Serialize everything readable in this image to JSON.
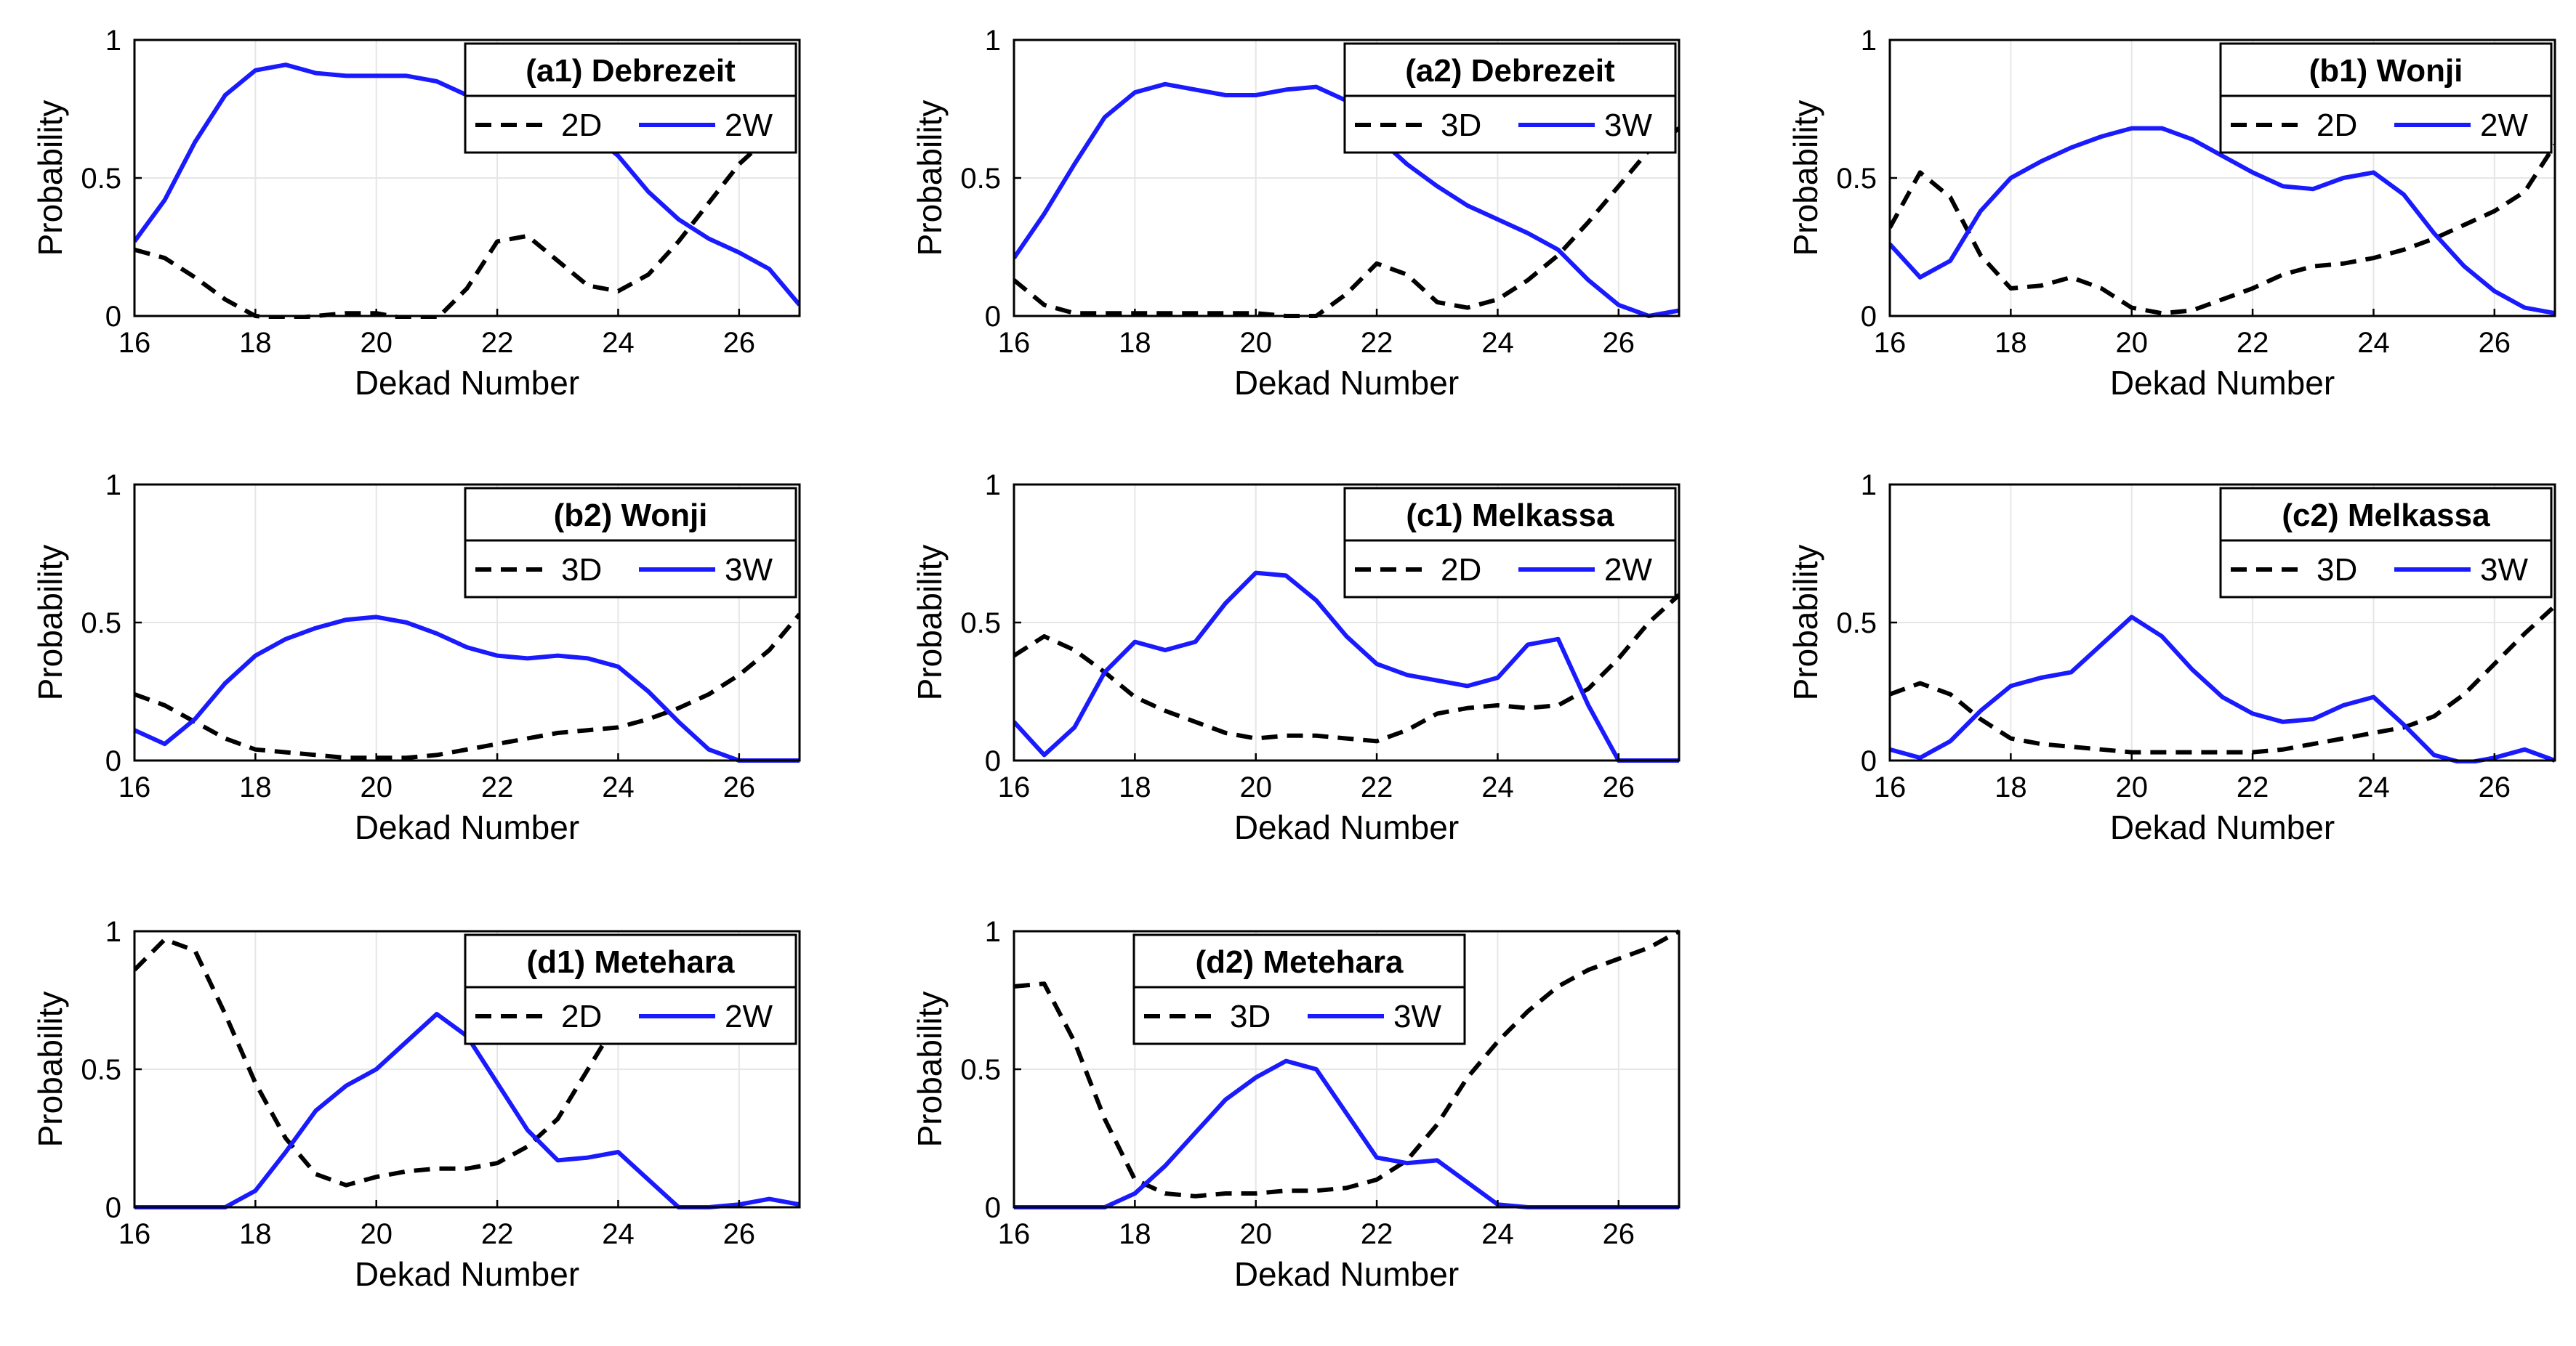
{
  "figure": {
    "description": "Eight line plots of dry (D, dashed black) and wet (W, solid blue) spell probabilities versus dekad number",
    "colors": {
      "dry": "#000000",
      "wet": "#1a1aff",
      "grid": "#e6e6e6",
      "axis": "#000000"
    }
  },
  "chart_data": [
    {
      "type": "line",
      "title": "(a1) Debrezeit",
      "xlabel": "Dekad Number",
      "ylabel": "Probability",
      "xlim": [
        16,
        27
      ],
      "ylim": [
        0,
        1
      ],
      "xticks": [
        "16",
        "18",
        "20",
        "22",
        "24",
        "26"
      ],
      "yticks": [
        "0",
        "0.5",
        "1"
      ],
      "grid": true,
      "legend_position": "top-right",
      "series": [
        {
          "name": "2D",
          "style": "dashed",
          "color": "#000000",
          "x": [
            16,
            16.5,
            17,
            17.5,
            18,
            18.5,
            19,
            19.5,
            20,
            20.5,
            21,
            21.5,
            22,
            22.5,
            23,
            23.5,
            24,
            24.5,
            25,
            25.5,
            26,
            26.5,
            27
          ],
          "y": [
            0.24,
            0.21,
            0.14,
            0.06,
            0.0,
            -0.01,
            0.0,
            0.01,
            0.01,
            -0.01,
            -0.01,
            0.1,
            0.27,
            0.29,
            0.2,
            0.11,
            0.09,
            0.15,
            0.27,
            0.41,
            0.55,
            0.65,
            0.68
          ]
        },
        {
          "name": "2W",
          "style": "solid",
          "color": "#1a1aff",
          "x": [
            16,
            16.5,
            17,
            17.5,
            18,
            18.5,
            19,
            19.5,
            20,
            20.5,
            21,
            21.5,
            22,
            22.5,
            23,
            23.5,
            24,
            24.5,
            25,
            25.5,
            26,
            26.5,
            27
          ],
          "y": [
            0.27,
            0.42,
            0.63,
            0.8,
            0.89,
            0.91,
            0.88,
            0.87,
            0.87,
            0.87,
            0.85,
            0.8,
            0.78,
            0.75,
            0.73,
            0.67,
            0.58,
            0.45,
            0.35,
            0.28,
            0.23,
            0.17,
            0.04
          ]
        }
      ]
    },
    {
      "type": "line",
      "title": "(a2) Debrezeit",
      "xlabel": "Dekad Number",
      "ylabel": "Probability",
      "xlim": [
        16,
        27
      ],
      "ylim": [
        0,
        1
      ],
      "xticks": [
        "16",
        "18",
        "20",
        "22",
        "24",
        "26"
      ],
      "yticks": [
        "0",
        "0.5",
        "1"
      ],
      "grid": true,
      "legend_position": "top-right",
      "series": [
        {
          "name": "3D",
          "style": "dashed",
          "color": "#000000",
          "x": [
            16,
            16.5,
            17,
            17.5,
            18,
            18.5,
            19,
            19.5,
            20,
            20.5,
            21,
            21.5,
            22,
            22.5,
            23,
            23.5,
            24,
            24.5,
            25,
            25.5,
            26,
            26.5,
            27
          ],
          "y": [
            0.13,
            0.04,
            0.01,
            0.01,
            0.01,
            0.01,
            0.01,
            0.01,
            0.01,
            0.0,
            0.0,
            0.08,
            0.19,
            0.15,
            0.05,
            0.03,
            0.06,
            0.13,
            0.22,
            0.34,
            0.47,
            0.6,
            0.68
          ]
        },
        {
          "name": "3W",
          "style": "solid",
          "color": "#1a1aff",
          "x": [
            16,
            16.5,
            17,
            17.5,
            18,
            18.5,
            19,
            19.5,
            20,
            20.5,
            21,
            21.5,
            22,
            22.5,
            23,
            23.5,
            24,
            24.5,
            25,
            25.5,
            26,
            26.5,
            27
          ],
          "y": [
            0.21,
            0.37,
            0.55,
            0.72,
            0.81,
            0.84,
            0.82,
            0.8,
            0.8,
            0.82,
            0.83,
            0.78,
            0.65,
            0.55,
            0.47,
            0.4,
            0.35,
            0.3,
            0.24,
            0.13,
            0.04,
            0.0,
            0.02
          ]
        }
      ]
    },
    {
      "type": "line",
      "title": "(b1) Wonji",
      "xlabel": "Dekad Number",
      "ylabel": "Probability",
      "xlim": [
        16,
        27
      ],
      "ylim": [
        0,
        1
      ],
      "xticks": [
        "16",
        "18",
        "20",
        "22",
        "24",
        "26"
      ],
      "yticks": [
        "0",
        "0.5",
        "1"
      ],
      "grid": true,
      "legend_position": "top-right",
      "series": [
        {
          "name": "2D",
          "style": "dashed",
          "color": "#000000",
          "x": [
            16,
            16.5,
            17,
            17.5,
            18,
            18.5,
            19,
            19.5,
            20,
            20.5,
            21,
            21.5,
            22,
            22.5,
            23,
            23.5,
            24,
            24.5,
            25,
            25.5,
            26,
            26.5,
            27
          ],
          "y": [
            0.32,
            0.52,
            0.43,
            0.22,
            0.1,
            0.11,
            0.14,
            0.1,
            0.03,
            0.01,
            0.02,
            0.06,
            0.1,
            0.15,
            0.18,
            0.19,
            0.21,
            0.24,
            0.28,
            0.33,
            0.38,
            0.45,
            0.62
          ]
        },
        {
          "name": "2W",
          "style": "solid",
          "color": "#1a1aff",
          "x": [
            16,
            16.5,
            17,
            17.5,
            18,
            18.5,
            19,
            19.5,
            20,
            20.5,
            21,
            21.5,
            22,
            22.5,
            23,
            23.5,
            24,
            24.5,
            25,
            25.5,
            26,
            26.5,
            27
          ],
          "y": [
            0.26,
            0.14,
            0.2,
            0.38,
            0.5,
            0.56,
            0.61,
            0.65,
            0.68,
            0.68,
            0.64,
            0.58,
            0.52,
            0.47,
            0.46,
            0.5,
            0.52,
            0.44,
            0.3,
            0.18,
            0.09,
            0.03,
            0.01
          ]
        }
      ]
    },
    {
      "type": "line",
      "title": "(b2) Wonji",
      "xlabel": "Dekad Number",
      "ylabel": "Probability",
      "xlim": [
        16,
        27
      ],
      "ylim": [
        0,
        1
      ],
      "xticks": [
        "16",
        "18",
        "20",
        "22",
        "24",
        "26"
      ],
      "yticks": [
        "0",
        "0.5",
        "1"
      ],
      "grid": true,
      "legend_position": "top-right",
      "series": [
        {
          "name": "3D",
          "style": "dashed",
          "color": "#000000",
          "x": [
            16,
            16.5,
            17,
            17.5,
            18,
            18.5,
            19,
            19.5,
            20,
            20.5,
            21,
            21.5,
            22,
            22.5,
            23,
            23.5,
            24,
            24.5,
            25,
            25.5,
            26,
            26.5,
            27
          ],
          "y": [
            0.24,
            0.2,
            0.14,
            0.08,
            0.04,
            0.03,
            0.02,
            0.01,
            0.01,
            0.01,
            0.02,
            0.04,
            0.06,
            0.08,
            0.1,
            0.11,
            0.12,
            0.15,
            0.19,
            0.24,
            0.31,
            0.4,
            0.53
          ]
        },
        {
          "name": "3W",
          "style": "solid",
          "color": "#1a1aff",
          "x": [
            16,
            16.5,
            17,
            17.5,
            18,
            18.5,
            19,
            19.5,
            20,
            20.5,
            21,
            21.5,
            22,
            22.5,
            23,
            23.5,
            24,
            24.5,
            25,
            25.5,
            26,
            26.5,
            27
          ],
          "y": [
            0.11,
            0.06,
            0.15,
            0.28,
            0.38,
            0.44,
            0.48,
            0.51,
            0.52,
            0.5,
            0.46,
            0.41,
            0.38,
            0.37,
            0.38,
            0.37,
            0.34,
            0.25,
            0.14,
            0.04,
            0.0,
            0.0,
            0.0
          ]
        }
      ]
    },
    {
      "type": "line",
      "title": "(c1) Melkassa",
      "xlabel": "Dekad Number",
      "ylabel": "Probability",
      "xlim": [
        16,
        27
      ],
      "ylim": [
        0,
        1
      ],
      "xticks": [
        "16",
        "18",
        "20",
        "22",
        "24",
        "26"
      ],
      "yticks": [
        "0",
        "0.5",
        "1"
      ],
      "grid": true,
      "legend_position": "top-right",
      "series": [
        {
          "name": "2D",
          "style": "dashed",
          "color": "#000000",
          "x": [
            16,
            16.5,
            17,
            17.5,
            18,
            18.5,
            19,
            19.5,
            20,
            20.5,
            21,
            21.5,
            22,
            22.5,
            23,
            23.5,
            24,
            24.5,
            25,
            25.5,
            26,
            26.5,
            27
          ],
          "y": [
            0.38,
            0.45,
            0.4,
            0.32,
            0.23,
            0.18,
            0.14,
            0.1,
            0.08,
            0.09,
            0.09,
            0.08,
            0.07,
            0.11,
            0.17,
            0.19,
            0.2,
            0.19,
            0.2,
            0.26,
            0.37,
            0.5,
            0.6
          ]
        },
        {
          "name": "2W",
          "style": "solid",
          "color": "#1a1aff",
          "x": [
            16,
            16.5,
            17,
            17.5,
            18,
            18.5,
            19,
            19.5,
            20,
            20.5,
            21,
            21.5,
            22,
            22.5,
            23,
            23.5,
            24,
            24.5,
            25,
            25.5,
            26,
            26.5,
            27
          ],
          "y": [
            0.14,
            0.02,
            0.12,
            0.32,
            0.43,
            0.4,
            0.43,
            0.57,
            0.68,
            0.67,
            0.58,
            0.45,
            0.35,
            0.31,
            0.29,
            0.27,
            0.3,
            0.42,
            0.44,
            0.2,
            0.0,
            0.0,
            0.0
          ]
        }
      ]
    },
    {
      "type": "line",
      "title": "(c2) Melkassa",
      "xlabel": "Dekad Number",
      "ylabel": "Probability",
      "xlim": [
        16,
        27
      ],
      "ylim": [
        0,
        1
      ],
      "xticks": [
        "16",
        "18",
        "20",
        "22",
        "24",
        "26"
      ],
      "yticks": [
        "0",
        "0.5",
        "1"
      ],
      "grid": true,
      "legend_position": "top-right",
      "series": [
        {
          "name": "3D",
          "style": "dashed",
          "color": "#000000",
          "x": [
            16,
            16.5,
            17,
            17.5,
            18,
            18.5,
            19,
            19.5,
            20,
            20.5,
            21,
            21.5,
            22,
            22.5,
            23,
            23.5,
            24,
            24.5,
            25,
            25.5,
            26,
            26.5,
            27
          ],
          "y": [
            0.24,
            0.28,
            0.24,
            0.15,
            0.08,
            0.06,
            0.05,
            0.04,
            0.03,
            0.03,
            0.03,
            0.03,
            0.03,
            0.04,
            0.06,
            0.08,
            0.1,
            0.12,
            0.16,
            0.24,
            0.35,
            0.46,
            0.56
          ]
        },
        {
          "name": "3W",
          "style": "solid",
          "color": "#1a1aff",
          "x": [
            16,
            16.5,
            17,
            17.5,
            18,
            18.5,
            19,
            19.5,
            20,
            20.5,
            21,
            21.5,
            22,
            22.5,
            23,
            23.5,
            24,
            24.5,
            25,
            25.5,
            26,
            26.5,
            27
          ],
          "y": [
            0.04,
            0.01,
            0.07,
            0.18,
            0.27,
            0.3,
            0.32,
            0.42,
            0.52,
            0.45,
            0.33,
            0.23,
            0.17,
            0.14,
            0.15,
            0.2,
            0.23,
            0.13,
            0.02,
            -0.01,
            0.01,
            0.04,
            0.0
          ]
        }
      ]
    },
    {
      "type": "line",
      "title": "(d1) Metehara",
      "xlabel": "Dekad Number",
      "ylabel": "Probability",
      "xlim": [
        16,
        27
      ],
      "ylim": [
        0,
        1
      ],
      "xticks": [
        "16",
        "18",
        "20",
        "22",
        "24",
        "26"
      ],
      "yticks": [
        "0",
        "0.5",
        "1"
      ],
      "grid": true,
      "legend_position": "top-right",
      "series": [
        {
          "name": "2D",
          "style": "dashed",
          "color": "#000000",
          "x": [
            16,
            16.5,
            17,
            17.5,
            18,
            18.5,
            19,
            19.5,
            20,
            20.5,
            21,
            21.5,
            22,
            22.5,
            23,
            23.5,
            24
          ],
          "y": [
            0.86,
            0.97,
            0.93,
            0.7,
            0.45,
            0.25,
            0.12,
            0.08,
            0.11,
            0.13,
            0.14,
            0.14,
            0.16,
            0.22,
            0.32,
            0.5,
            0.68
          ]
        },
        {
          "name": "2W",
          "style": "solid",
          "color": "#1a1aff",
          "x": [
            16,
            16.5,
            17,
            17.5,
            18,
            18.5,
            19,
            19.5,
            20,
            20.5,
            21,
            21.5,
            22,
            22.5,
            23,
            23.5,
            24,
            24.5,
            25,
            25.5,
            26,
            26.5,
            27
          ],
          "y": [
            0.0,
            0.0,
            0.0,
            0.0,
            0.06,
            0.2,
            0.35,
            0.44,
            0.5,
            0.6,
            0.7,
            0.62,
            0.45,
            0.28,
            0.17,
            0.18,
            0.2,
            0.1,
            0.0,
            0.0,
            0.01,
            0.03,
            0.01
          ]
        }
      ]
    },
    {
      "type": "line",
      "title": "(d2) Metehara",
      "xlabel": "Dekad Number",
      "ylabel": "Probability",
      "xlim": [
        16,
        27
      ],
      "ylim": [
        0,
        1
      ],
      "xticks": [
        "16",
        "18",
        "20",
        "22",
        "24",
        "26"
      ],
      "yticks": [
        "0",
        "0.5",
        "1"
      ],
      "grid": true,
      "legend_position": "top-left",
      "series": [
        {
          "name": "3D",
          "style": "dashed",
          "color": "#000000",
          "x": [
            16,
            16.5,
            17,
            17.5,
            18,
            18.5,
            19,
            19.5,
            20,
            20.5,
            21,
            21.5,
            22,
            22.5,
            23,
            23.5,
            24,
            24.5,
            25,
            25.5,
            26,
            26.5,
            27
          ],
          "y": [
            0.8,
            0.81,
            0.6,
            0.32,
            0.1,
            0.05,
            0.04,
            0.05,
            0.05,
            0.06,
            0.06,
            0.07,
            0.1,
            0.17,
            0.3,
            0.47,
            0.6,
            0.71,
            0.8,
            0.86,
            0.9,
            0.94,
            1.0
          ]
        },
        {
          "name": "3W",
          "style": "solid",
          "color": "#1a1aff",
          "x": [
            16,
            16.5,
            17,
            17.5,
            18,
            18.5,
            19,
            19.5,
            20,
            20.5,
            21,
            21.5,
            22,
            22.5,
            23,
            23.5,
            24,
            24.5,
            25,
            25.5,
            26,
            26.5,
            27
          ],
          "y": [
            0.0,
            0.0,
            0.0,
            0.0,
            0.05,
            0.15,
            0.27,
            0.39,
            0.47,
            0.53,
            0.5,
            0.34,
            0.18,
            0.16,
            0.17,
            0.09,
            0.01,
            0.0,
            0.0,
            0.0,
            0.0,
            0.0,
            0.0
          ]
        }
      ]
    }
  ]
}
